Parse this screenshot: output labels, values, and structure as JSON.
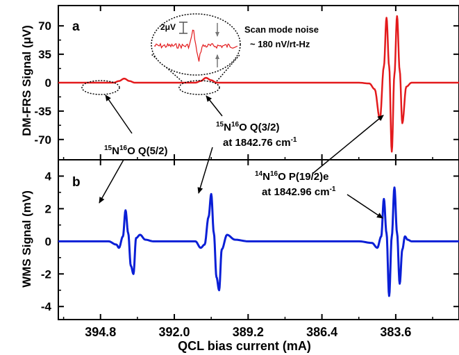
{
  "chart_data": [
    {
      "panel_label": "a",
      "type": "line",
      "ylabel": "DM-FRS Signal (μV)",
      "xlabel": "QCL bias current (mA)",
      "x_reversed": true,
      "xlim": [
        396.4,
        381.2
      ],
      "ylim": [
        -95,
        95
      ],
      "yticks": [
        70,
        35,
        0,
        -35,
        -70
      ],
      "ytick_labels": [
        "70",
        "35",
        "0",
        "-35",
        "-70"
      ],
      "series": [
        {
          "color": "#e31a1c",
          "x": [
            396.4,
            395.0,
            394.3,
            394.1,
            393.9,
            393.7,
            393.5,
            392.0,
            391.2,
            391.0,
            390.8,
            390.6,
            390.4,
            388.5,
            386.4,
            385.0,
            384.6,
            384.4,
            384.2,
            384.05,
            383.95,
            383.85,
            383.75,
            383.65,
            383.55,
            383.45,
            383.35,
            383.2,
            383.0,
            382.5,
            381.2
          ],
          "y": [
            0,
            0,
            0,
            2,
            5,
            2,
            0,
            0,
            0,
            2,
            6,
            3,
            0,
            0,
            0,
            0,
            -1,
            -8,
            -45,
            20,
            80,
            20,
            -85,
            10,
            82,
            15,
            -50,
            -5,
            0,
            0,
            0
          ]
        }
      ],
      "annotations": [
        {
          "text": "Scan mode noise",
          "note": "inset title"
        },
        {
          "text": "~ 180 nV/rt-Hz"
        },
        {
          "text": "2μV",
          "note": "inset scale bar"
        }
      ]
    },
    {
      "panel_label": "b",
      "type": "line",
      "ylabel": "WMS Signal (mV)",
      "xlabel": "QCL bias current (mA)",
      "x_reversed": true,
      "xlim": [
        396.4,
        381.2
      ],
      "ylim": [
        -4.8,
        5.0
      ],
      "yticks": [
        4,
        2,
        0,
        -2,
        -4
      ],
      "ytick_labels": [
        "4",
        "2",
        "0",
        "-2",
        "-4"
      ],
      "xticks": [
        394.8,
        392.0,
        389.2,
        386.4,
        383.6
      ],
      "xtick_labels": [
        "394.8",
        "392.0",
        "389.2",
        "386.4",
        "383.6"
      ],
      "series": [
        {
          "color": "#0a1fd6",
          "x": [
            396.4,
            394.5,
            394.2,
            394.1,
            393.95,
            393.85,
            393.75,
            393.65,
            393.55,
            393.45,
            393.3,
            393.1,
            392.8,
            392.0,
            391.2,
            391.0,
            390.85,
            390.7,
            390.6,
            390.5,
            390.4,
            390.3,
            390.2,
            390.0,
            389.7,
            389.2,
            386.4,
            385.0,
            384.5,
            384.3,
            384.15,
            384.05,
            383.95,
            383.85,
            383.75,
            383.65,
            383.55,
            383.45,
            383.35,
            383.25,
            383.15,
            383.0,
            382.8,
            382.5,
            381.2
          ],
          "y": [
            0,
            0,
            -0.2,
            -0.4,
            0.3,
            1.9,
            0.5,
            -1.5,
            -2.0,
            0.2,
            0.4,
            0.1,
            0,
            0,
            0,
            -0.4,
            -0.2,
            1.5,
            2.9,
            0.5,
            -2.2,
            -3.0,
            -0.5,
            0.4,
            0.1,
            0,
            0,
            0,
            -0.1,
            -0.4,
            0.3,
            2.6,
            0.5,
            -3.35,
            0.3,
            3.3,
            0.5,
            -2.6,
            -0.5,
            0.3,
            0.1,
            0,
            0,
            0,
            0
          ]
        }
      ]
    }
  ],
  "labels": {
    "panel_a": "a",
    "panel_b": "b",
    "inset_title": "Scan mode noise",
    "inset_noise": "~ 180 nV/rt-Hz",
    "inset_scale": "2μV",
    "peak1": {
      "iso": "15",
      "mid": "N",
      "iso2": "16",
      "name": "O Q(5/2)"
    },
    "peak2": {
      "iso": "15",
      "mid": "N",
      "iso2": "16",
      "name": "O Q(3/2)",
      "freq": "at 1842.76 cm",
      "exp": "-1"
    },
    "peak3": {
      "iso": "14",
      "mid": "N",
      "iso2": "16",
      "name": "O P(19/2)e",
      "freq": "at 1842.96 cm",
      "exp": "-1"
    }
  }
}
